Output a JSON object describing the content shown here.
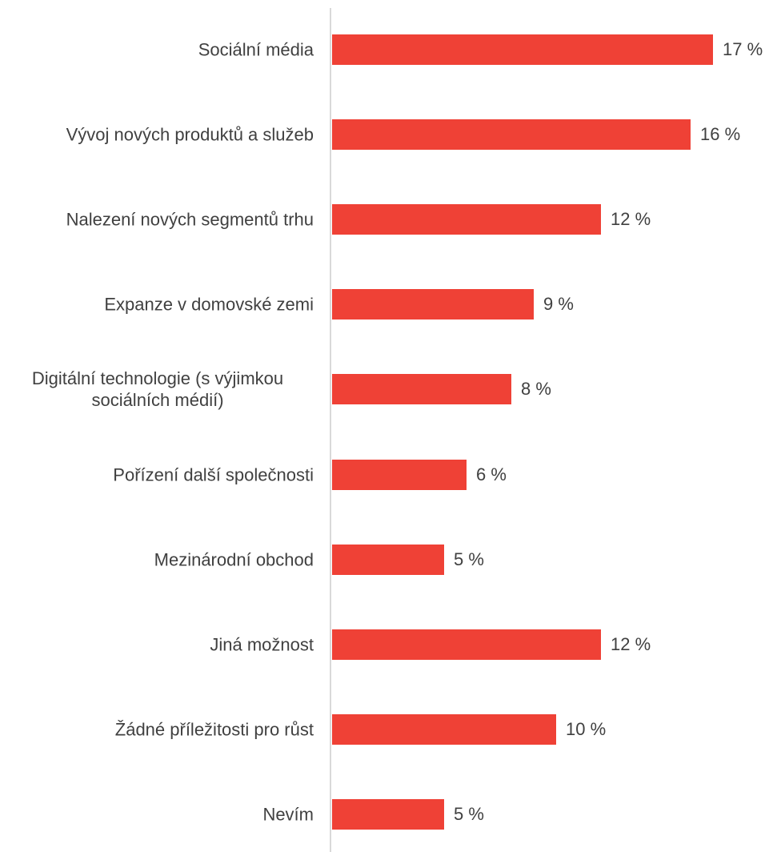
{
  "chart_data": {
    "type": "bar",
    "orientation": "horizontal",
    "categories": [
      "Sociální média",
      "Vývoj nových produktů a služeb",
      "Nalezení nových segmentů trhu",
      "Expanze v domovské zemi",
      "Digitální technologie (s výjimkou sociálních médií)",
      "Pořízení další společnosti",
      "Mezinárodní obchod",
      "Jiná možnost",
      "Žádné příležitosti pro růst",
      "Nevím"
    ],
    "values": [
      17,
      16,
      12,
      9,
      8,
      6,
      5,
      12,
      10,
      5
    ],
    "value_labels": [
      "17 %",
      "16 %",
      "12 %",
      "9 %",
      "8 %",
      "6 %",
      "5 %",
      "12 %",
      "10 %",
      "5 %"
    ],
    "color": "#ef4136"
  }
}
